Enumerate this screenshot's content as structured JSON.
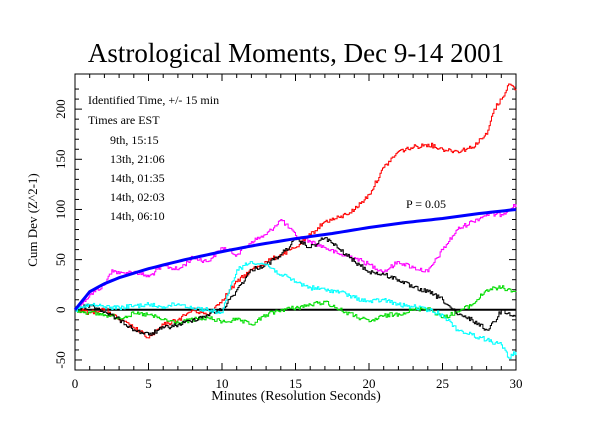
{
  "chart_data": {
    "type": "line",
    "title": "Astrological Moments, Dec 9-14 2001",
    "xlabel": "Minutes (Resolution Seconds)",
    "ylabel": "Cum Dev (Z^2-1)",
    "xlim": [
      0,
      30
    ],
    "ylim": [
      -60,
      235
    ],
    "x_ticks": [
      0,
      5,
      10,
      15,
      20,
      25,
      30
    ],
    "y_ticks": [
      -50,
      0,
      50,
      100,
      150,
      200
    ],
    "grid": false,
    "legend_position": "top-left",
    "notes": [
      "Identified Time, +/- 15 min",
      "Times are EST"
    ],
    "threshold": {
      "label": "P = 0.05",
      "color": "#0000ff",
      "x": [
        0,
        1,
        2,
        3,
        5,
        7.5,
        10,
        12.5,
        15,
        17.5,
        20,
        22.5,
        25,
        27.5,
        30
      ],
      "y": [
        0,
        18,
        26,
        32,
        41,
        50,
        58,
        65,
        71,
        76,
        82,
        87,
        91,
        96,
        100
      ]
    },
    "series": [
      {
        "name": "9th, 15:15",
        "color": "#ff00ff",
        "x": [
          0,
          1,
          2,
          2.5,
          3,
          4,
          5,
          6,
          7,
          8,
          9,
          10,
          11,
          12,
          13,
          14,
          15,
          16,
          17,
          18,
          19,
          20,
          21,
          22,
          23,
          24,
          25,
          26,
          27,
          28,
          29,
          30
        ],
        "y": [
          0,
          15,
          25,
          40,
          36,
          38,
          33,
          44,
          40,
          52,
          48,
          62,
          55,
          68,
          75,
          90,
          74,
          68,
          62,
          55,
          52,
          45,
          38,
          48,
          42,
          38,
          60,
          80,
          88,
          95,
          95,
          105
        ]
      },
      {
        "name": "13th, 21:06",
        "color": "#ff0000",
        "x": [
          0,
          1,
          2,
          3,
          4,
          5,
          6,
          7,
          8,
          9,
          10,
          11,
          12,
          13,
          14,
          15,
          16,
          17,
          18,
          19,
          20,
          21,
          22,
          23,
          24,
          25,
          26,
          27,
          28,
          28.5,
          29,
          29.5,
          30
        ],
        "y": [
          0,
          -3,
          1,
          -10,
          -18,
          -28,
          -15,
          -10,
          0,
          -5,
          10,
          28,
          40,
          48,
          55,
          62,
          75,
          88,
          92,
          100,
          115,
          142,
          158,
          162,
          165,
          160,
          158,
          162,
          175,
          200,
          210,
          225,
          220
        ]
      },
      {
        "name": "14th, 01:35",
        "color": "#00dd00",
        "x": [
          0,
          1,
          2,
          3,
          4,
          5,
          6,
          7,
          8,
          9,
          10,
          11,
          12,
          13,
          14,
          15,
          16,
          17,
          18,
          19,
          20,
          21,
          22,
          23,
          24,
          25,
          26,
          27,
          28,
          29,
          30
        ],
        "y": [
          0,
          -3,
          -5,
          -8,
          -4,
          -5,
          -10,
          -13,
          -10,
          -8,
          -12,
          -10,
          -15,
          -5,
          0,
          2,
          5,
          8,
          0,
          -6,
          -12,
          -6,
          -4,
          0,
          2,
          -8,
          -2,
          5,
          20,
          22,
          18
        ]
      },
      {
        "name": "14th, 02:03",
        "color": "#000000",
        "x": [
          0,
          1,
          2,
          3,
          4,
          5,
          6,
          7,
          8,
          9,
          10,
          11,
          12,
          13,
          14,
          15,
          16,
          17,
          18,
          19,
          20,
          21,
          22,
          23,
          24,
          25,
          26,
          27,
          28,
          28.5,
          29,
          29.5,
          30
        ],
        "y": [
          0,
          5,
          -2,
          -10,
          -20,
          -25,
          -18,
          -15,
          -10,
          -5,
          0,
          20,
          40,
          45,
          55,
          70,
          62,
          72,
          60,
          48,
          38,
          35,
          30,
          22,
          18,
          10,
          -5,
          -10,
          -20,
          -12,
          0,
          -3,
          -8
        ]
      },
      {
        "name": "14th, 06:10",
        "color": "#00ffff",
        "x": [
          0,
          1,
          2,
          3,
          4,
          5,
          6,
          7,
          8,
          9,
          10,
          10.5,
          11,
          12,
          13,
          14,
          15,
          16,
          17,
          18,
          19,
          20,
          21,
          22,
          23,
          24,
          25,
          26,
          27,
          28,
          29,
          29.5,
          30
        ],
        "y": [
          0,
          5,
          3,
          2,
          4,
          5,
          3,
          6,
          2,
          0,
          -3,
          20,
          40,
          48,
          45,
          35,
          28,
          22,
          20,
          18,
          12,
          8,
          10,
          5,
          3,
          0,
          -5,
          -20,
          -25,
          -30,
          -35,
          -48,
          -42
        ]
      }
    ]
  }
}
